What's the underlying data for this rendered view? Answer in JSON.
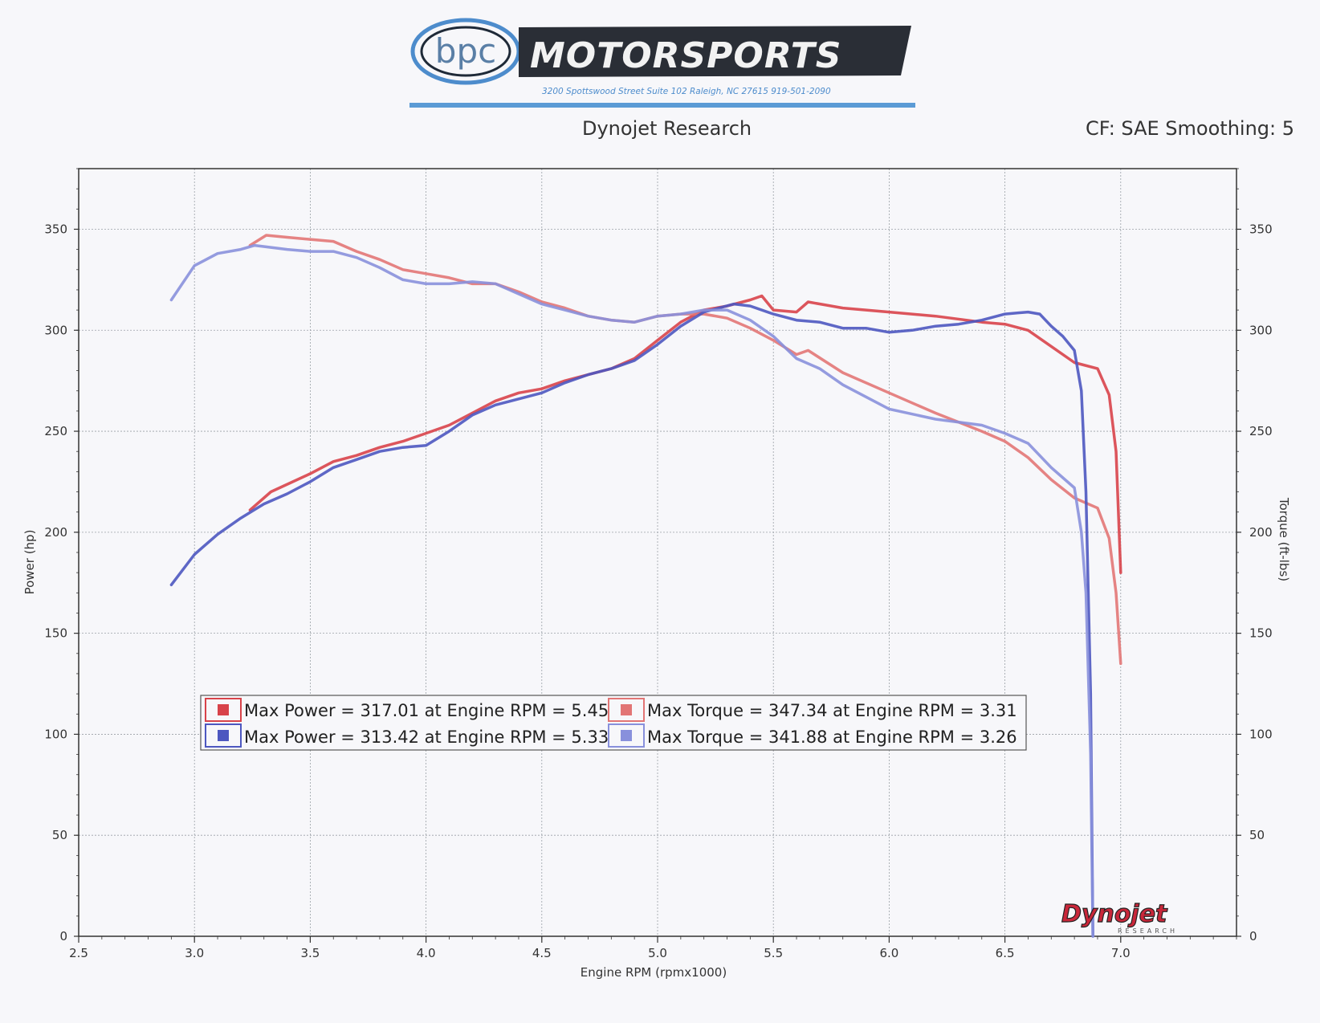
{
  "header": {
    "logo_text": "bpc",
    "brand": "MOTORSPORTS",
    "address": "3200 Spottswood Street Suite 102 Raleigh, NC 27615 919-501-2090"
  },
  "colors": {
    "run1_power": "#d8434a",
    "run1_torque": "#e27575",
    "run2_power": "#4d57c0",
    "run2_torque": "#8890dc",
    "grid": "#9aa0a6",
    "logo_blue": "#4d8ccc"
  },
  "chart_data": {
    "type": "line",
    "title": "Dynojet Research",
    "subtitle": "CF: SAE Smoothing: 5",
    "xlabel": "Engine RPM (rpmx1000)",
    "ylabel_left": "Power (hp)",
    "ylabel_right": "Torque (ft-lbs)",
    "xlim": [
      2.5,
      7.5
    ],
    "ylim": [
      0,
      380
    ],
    "x_ticks": [
      "2.5",
      "3.0",
      "3.5",
      "4.0",
      "4.5",
      "5.0",
      "5.5",
      "6.0",
      "6.5",
      "7.0"
    ],
    "y_ticks": [
      "0",
      "50",
      "100",
      "150",
      "200",
      "250",
      "300",
      "350"
    ],
    "grid": true,
    "legend_position": "lower-left",
    "legend": [
      "Max Power = 317.01 at Engine RPM = 5.45",
      "Max Torque = 347.34 at Engine RPM = 3.31",
      "Max Power = 313.42 at Engine RPM = 5.33",
      "Max Torque = 341.88 at Engine RPM = 3.26"
    ],
    "series": [
      {
        "key": "run1_power",
        "axis": "left",
        "points": [
          [
            3.24,
            211
          ],
          [
            3.33,
            220
          ],
          [
            3.5,
            229
          ],
          [
            3.6,
            235
          ],
          [
            3.7,
            238
          ],
          [
            3.8,
            242
          ],
          [
            3.9,
            245
          ],
          [
            4.0,
            249
          ],
          [
            4.1,
            253
          ],
          [
            4.2,
            259
          ],
          [
            4.3,
            265
          ],
          [
            4.4,
            269
          ],
          [
            4.5,
            271
          ],
          [
            4.6,
            275
          ],
          [
            4.7,
            278
          ],
          [
            4.8,
            281
          ],
          [
            4.9,
            286
          ],
          [
            5.0,
            295
          ],
          [
            5.1,
            304
          ],
          [
            5.2,
            310
          ],
          [
            5.3,
            312
          ],
          [
            5.4,
            315
          ],
          [
            5.45,
            317
          ],
          [
            5.5,
            310
          ],
          [
            5.6,
            309
          ],
          [
            5.65,
            314
          ],
          [
            5.8,
            311
          ],
          [
            6.0,
            309
          ],
          [
            6.2,
            307
          ],
          [
            6.4,
            304
          ],
          [
            6.5,
            303
          ],
          [
            6.6,
            300
          ],
          [
            6.7,
            292
          ],
          [
            6.8,
            284
          ],
          [
            6.9,
            281
          ],
          [
            6.95,
            268
          ],
          [
            6.98,
            240
          ],
          [
            7.0,
            180
          ]
        ]
      },
      {
        "key": "run1_torque",
        "axis": "right",
        "points": [
          [
            3.24,
            342
          ],
          [
            3.31,
            347
          ],
          [
            3.4,
            346
          ],
          [
            3.5,
            345
          ],
          [
            3.6,
            344
          ],
          [
            3.7,
            339
          ],
          [
            3.8,
            335
          ],
          [
            3.9,
            330
          ],
          [
            4.0,
            328
          ],
          [
            4.1,
            326
          ],
          [
            4.2,
            323
          ],
          [
            4.3,
            323
          ],
          [
            4.4,
            319
          ],
          [
            4.5,
            314
          ],
          [
            4.6,
            311
          ],
          [
            4.7,
            307
          ],
          [
            4.8,
            305
          ],
          [
            4.9,
            304
          ],
          [
            5.0,
            307
          ],
          [
            5.1,
            308
          ],
          [
            5.2,
            308
          ],
          [
            5.3,
            306
          ],
          [
            5.4,
            301
          ],
          [
            5.5,
            295
          ],
          [
            5.6,
            288
          ],
          [
            5.65,
            290
          ],
          [
            5.8,
            279
          ],
          [
            6.0,
            269
          ],
          [
            6.2,
            259
          ],
          [
            6.4,
            250
          ],
          [
            6.5,
            245
          ],
          [
            6.6,
            237
          ],
          [
            6.7,
            226
          ],
          [
            6.8,
            217
          ],
          [
            6.9,
            212
          ],
          [
            6.95,
            197
          ],
          [
            6.98,
            170
          ],
          [
            7.0,
            135
          ]
        ]
      },
      {
        "key": "run2_power",
        "axis": "left",
        "points": [
          [
            2.9,
            174
          ],
          [
            3.0,
            189
          ],
          [
            3.1,
            199
          ],
          [
            3.2,
            207
          ],
          [
            3.3,
            214
          ],
          [
            3.4,
            219
          ],
          [
            3.5,
            225
          ],
          [
            3.6,
            232
          ],
          [
            3.7,
            236
          ],
          [
            3.8,
            240
          ],
          [
            3.9,
            242
          ],
          [
            4.0,
            243
          ],
          [
            4.1,
            250
          ],
          [
            4.2,
            258
          ],
          [
            4.3,
            263
          ],
          [
            4.4,
            266
          ],
          [
            4.5,
            269
          ],
          [
            4.6,
            274
          ],
          [
            4.7,
            278
          ],
          [
            4.8,
            281
          ],
          [
            4.9,
            285
          ],
          [
            5.0,
            293
          ],
          [
            5.1,
            302
          ],
          [
            5.2,
            309
          ],
          [
            5.33,
            313
          ],
          [
            5.4,
            312
          ],
          [
            5.5,
            308
          ],
          [
            5.6,
            305
          ],
          [
            5.7,
            304
          ],
          [
            5.8,
            301
          ],
          [
            5.9,
            301
          ],
          [
            6.0,
            299
          ],
          [
            6.1,
            300
          ],
          [
            6.2,
            302
          ],
          [
            6.3,
            303
          ],
          [
            6.4,
            305
          ],
          [
            6.5,
            308
          ],
          [
            6.6,
            309
          ],
          [
            6.65,
            308
          ],
          [
            6.7,
            302
          ],
          [
            6.75,
            297
          ],
          [
            6.8,
            290
          ],
          [
            6.83,
            270
          ],
          [
            6.85,
            220
          ],
          [
            6.87,
            120
          ],
          [
            6.88,
            0
          ]
        ]
      },
      {
        "key": "run2_torque",
        "axis": "right",
        "points": [
          [
            2.9,
            315
          ],
          [
            3.0,
            332
          ],
          [
            3.1,
            338
          ],
          [
            3.2,
            340
          ],
          [
            3.26,
            342
          ],
          [
            3.4,
            340
          ],
          [
            3.5,
            339
          ],
          [
            3.6,
            339
          ],
          [
            3.7,
            336
          ],
          [
            3.8,
            331
          ],
          [
            3.9,
            325
          ],
          [
            4.0,
            323
          ],
          [
            4.1,
            323
          ],
          [
            4.2,
            324
          ],
          [
            4.3,
            323
          ],
          [
            4.4,
            318
          ],
          [
            4.5,
            313
          ],
          [
            4.6,
            310
          ],
          [
            4.7,
            307
          ],
          [
            4.8,
            305
          ],
          [
            4.9,
            304
          ],
          [
            5.0,
            307
          ],
          [
            5.1,
            308
          ],
          [
            5.2,
            310
          ],
          [
            5.3,
            310
          ],
          [
            5.4,
            305
          ],
          [
            5.5,
            297
          ],
          [
            5.6,
            286
          ],
          [
            5.7,
            281
          ],
          [
            5.8,
            273
          ],
          [
            6.0,
            261
          ],
          [
            6.2,
            256
          ],
          [
            6.4,
            253
          ],
          [
            6.5,
            249
          ],
          [
            6.6,
            244
          ],
          [
            6.7,
            232
          ],
          [
            6.8,
            222
          ],
          [
            6.83,
            200
          ],
          [
            6.85,
            170
          ],
          [
            6.87,
            90
          ],
          [
            6.88,
            0
          ]
        ]
      }
    ]
  }
}
